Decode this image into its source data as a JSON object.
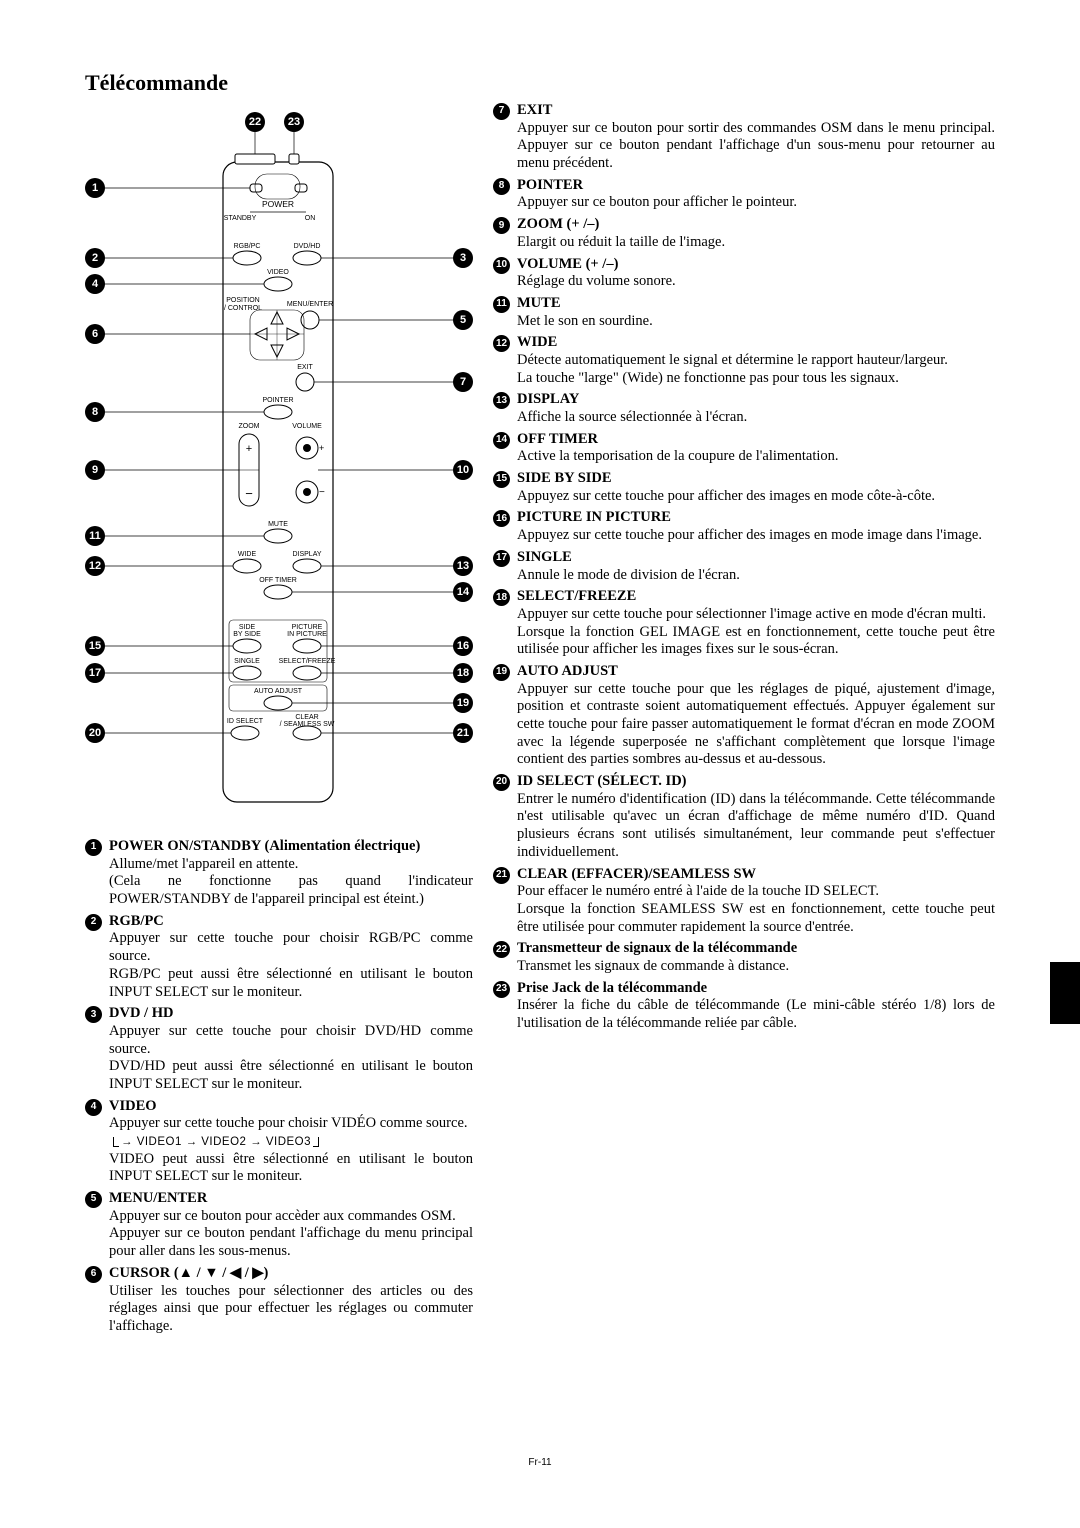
{
  "title": "Télécommande",
  "page_number": "Fr-11",
  "remote": {
    "labels": {
      "power": "POWER",
      "standby": "STANDBY",
      "on": "ON",
      "rgbpc": "RGB/PC",
      "dvdhd": "DVD/HD",
      "video": "VIDEO",
      "position_control": "POSITION\n/ CONTROL",
      "menu_enter": "MENU/ENTER",
      "exit": "EXIT",
      "pointer": "POINTER",
      "zoom": "ZOOM",
      "volume": "VOLUME",
      "mute": "MUTE",
      "wide": "WIDE",
      "display": "DISPLAY",
      "off_timer": "OFF TIMER",
      "side_by_side": "SIDE\nBY SIDE",
      "pic_in_pic": "PICTURE\nIN PICTURE",
      "single": "SINGLE",
      "select_freeze": "SELECT/FREEZE",
      "auto_adjust": "AUTO ADJUST",
      "id_select": "ID SELECT",
      "clear_seamless": "CLEAR\n/ SEAMLESS SW"
    }
  },
  "left_items": [
    {
      "n": "1",
      "hd": "POWER ON/STANDBY (Alimentation électrique)",
      "body": "Allume/met l'appareil en attente.\n(Cela ne fonctionne pas quand l'indicateur POWER/STANDBY de l'appareil principal est éteint.)"
    },
    {
      "n": "2",
      "hd": "RGB/PC",
      "body": "Appuyer sur cette touche pour choisir RGB/PC comme source.\nRGB/PC peut aussi être sélectionné en utilisant le bouton INPUT SELECT sur le moniteur."
    },
    {
      "n": "3",
      "hd": "DVD / HD",
      "body": "Appuyer sur cette touche pour choisir DVD/HD comme source.\nDVD/HD peut aussi être sélectionné en utilisant le bouton INPUT SELECT sur le moniteur."
    },
    {
      "n": "4",
      "hd": "VIDEO",
      "body": "Appuyer sur cette touche pour choisir VIDÉO comme source.",
      "seq": "→ VIDEO1 → VIDEO2 → VIDEO3",
      "body2": "VIDEO peut aussi être sélectionné en utilisant le bouton INPUT SELECT sur le moniteur."
    },
    {
      "n": "5",
      "hd": "MENU/ENTER",
      "body": "Appuyer sur ce bouton pour accèder aux commandes OSM.\nAppuyer sur ce bouton pendant l'affichage du menu principal pour aller dans les sous-menus."
    },
    {
      "n": "6",
      "hd": "CURSOR (▲ / ▼ / ◀ / ▶)",
      "body": "Utiliser les touches pour sélectionner des articles ou des réglages ainsi que pour effectuer les réglages ou commuter l'affichage."
    }
  ],
  "right_items": [
    {
      "n": "7",
      "hd": "EXIT",
      "body": "Appuyer sur ce bouton pour sortir des commandes OSM dans le menu principal. Appuyer sur ce bouton pendant l'affichage d'un sous-menu pour retourner au menu précédent."
    },
    {
      "n": "8",
      "hd": "POINTER",
      "body": "Appuyer sur ce bouton pour afficher le pointeur."
    },
    {
      "n": "9",
      "hd": "ZOOM (+ /–)",
      "body": "Elargit ou réduit la taille de l'image."
    },
    {
      "n": "10",
      "hd": "VOLUME (+ /–)",
      "body": "Réglage du volume sonore."
    },
    {
      "n": "11",
      "hd": "MUTE",
      "body": "Met le son en sourdine."
    },
    {
      "n": "12",
      "hd": "WIDE",
      "body": "Détecte automatiquement le signal et détermine le rapport hauteur/largeur.\nLa touche \"large\" (Wide) ne fonctionne pas pour tous les signaux."
    },
    {
      "n": "13",
      "hd": "DISPLAY",
      "body": "Affiche la source sélectionnée à l'écran."
    },
    {
      "n": "14",
      "hd": "OFF TIMER",
      "body": "Active la temporisation de la coupure de l'alimentation."
    },
    {
      "n": "15",
      "hd": "SIDE BY SIDE",
      "body": "Appuyez sur cette touche pour afficher des images en mode côte-à-côte."
    },
    {
      "n": "16",
      "hd": "PICTURE IN PICTURE",
      "body": "Appuyez sur cette touche pour afficher des images en mode image dans l'image."
    },
    {
      "n": "17",
      "hd": "SINGLE",
      "body": "Annule le mode de division de l'écran."
    },
    {
      "n": "18",
      "hd": "SELECT/FREEZE",
      "body": "Appuyer sur cette touche pour sélectionner l'image active en mode d'écran multi.\nLorsque la fonction GEL IMAGE est en fonctionnement, cette touche peut être utilisée pour afficher les images fixes sur le sous-écran."
    },
    {
      "n": "19",
      "hd": "AUTO ADJUST",
      "body": "Appuyer sur cette touche pour que les réglages de piqué, ajustement d'image, position et contraste soient automatiquement effectués. Appuyer également sur cette touche pour faire passer automatiquement le format d'écran en mode ZOOM avec la légende superposée ne s'affichant complètement que lorsque l'image contient des parties sombres au-dessus et au-dessous."
    },
    {
      "n": "20",
      "hd": "ID SELECT (SÉLECT. ID)",
      "body": "Entrer le numéro d'identification (ID) dans la télécommande. Cette télécommande n'est utilisable qu'avec un écran d'affichage de même numéro d'ID. Quand plusieurs écrans sont utilisés simultanément, leur commande peut s'effectuer individuellement."
    },
    {
      "n": "21",
      "hd": "CLEAR (EFFACER)/SEAMLESS SW",
      "body": "Pour effacer le numéro entré à l'aide de la touche ID SELECT.\nLorsque la fonction SEAMLESS SW est en fonctionnement, cette touche peut être utilisée pour commuter rapidement la source d'entrée."
    },
    {
      "n": "22",
      "hd": "Transmetteur de signaux de la télécommande",
      "body": "Transmet les signaux de commande à distance."
    },
    {
      "n": "23",
      "hd": "Prise Jack de la télécommande",
      "body": "Insérer la fiche du câble de télécommande (Le mini-câble stéréo 1/8) lors de l'utilisation de la télécommande reliée par câble."
    }
  ]
}
